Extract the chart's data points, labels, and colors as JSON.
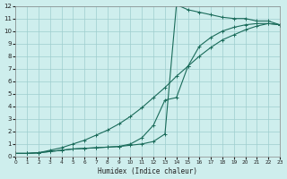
{
  "xlabel": "Humidex (Indice chaleur)",
  "bg_color": "#ceeeed",
  "grid_color": "#9ecece",
  "line_color": "#1a6b5a",
  "xlim": [
    0,
    23
  ],
  "ylim": [
    0,
    12
  ],
  "xticks": [
    0,
    1,
    2,
    3,
    4,
    5,
    6,
    7,
    8,
    9,
    10,
    11,
    12,
    13,
    14,
    15,
    16,
    17,
    18,
    19,
    20,
    21,
    22,
    23
  ],
  "yticks": [
    0,
    1,
    2,
    3,
    4,
    5,
    6,
    7,
    8,
    9,
    10,
    11,
    12
  ],
  "curve1_x": [
    0,
    1,
    2,
    3,
    4,
    5,
    6,
    7,
    8,
    9,
    10,
    11,
    12,
    13,
    14,
    15,
    16,
    17,
    18,
    19,
    20,
    21,
    22,
    23
  ],
  "curve1_y": [
    0.25,
    0.25,
    0.3,
    0.4,
    0.5,
    0.6,
    0.65,
    0.7,
    0.75,
    0.8,
    0.9,
    1.0,
    1.2,
    1.8,
    12.1,
    11.7,
    11.5,
    11.3,
    11.1,
    11.0,
    11.0,
    10.8,
    10.8,
    10.5
  ],
  "curve2_x": [
    0,
    1,
    2,
    3,
    4,
    5,
    6,
    7,
    8,
    9,
    10,
    11,
    12,
    13,
    14,
    15,
    16,
    17,
    18,
    19,
    20,
    21,
    22,
    23
  ],
  "curve2_y": [
    0.25,
    0.25,
    0.3,
    0.5,
    0.7,
    1.0,
    1.3,
    1.7,
    2.1,
    2.6,
    3.2,
    3.9,
    4.7,
    5.5,
    6.4,
    7.2,
    8.0,
    8.7,
    9.3,
    9.7,
    10.1,
    10.4,
    10.6,
    10.5
  ],
  "curve3_x": [
    0,
    1,
    2,
    3,
    4,
    5,
    6,
    7,
    8,
    9,
    10,
    11,
    12,
    13,
    14,
    15,
    16,
    17,
    18,
    19,
    20,
    21,
    22,
    23
  ],
  "curve3_y": [
    0.25,
    0.25,
    0.3,
    0.4,
    0.5,
    0.6,
    0.65,
    0.7,
    0.75,
    0.8,
    1.0,
    1.5,
    2.5,
    4.5,
    4.7,
    7.2,
    8.8,
    9.5,
    10.0,
    10.3,
    10.5,
    10.6,
    10.6,
    10.5
  ]
}
